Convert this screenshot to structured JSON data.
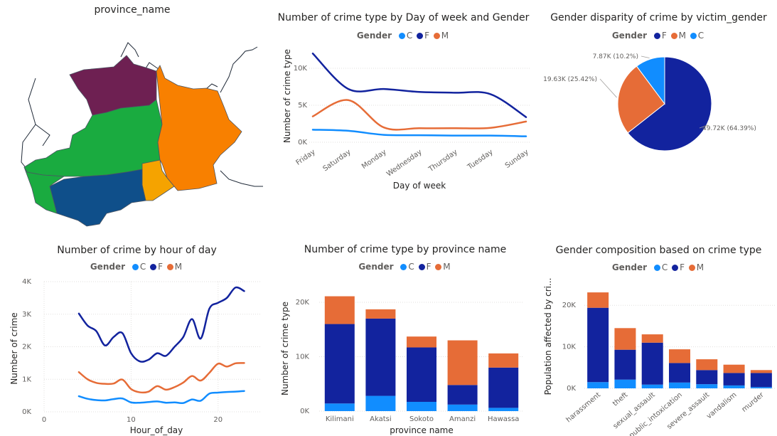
{
  "colors": {
    "C": "#118DFF",
    "F": "#12239E",
    "M": "#E66C37"
  },
  "map": {
    "title": "province_name",
    "regions": [
      {
        "name": "Kilimani",
        "color": "#12239E"
      },
      {
        "name": "Akatsi",
        "color": "#744EC2"
      },
      {
        "name": "Sokoto",
        "color": "#1AAB40"
      },
      {
        "name": "Amanzi",
        "color": "#F88000"
      },
      {
        "name": "Hawassa",
        "color": "#0F4F8A"
      }
    ]
  },
  "weekday": {
    "title": "Number of crime type by Day of week and Gender",
    "legend_title": "Gender",
    "legend": [
      {
        "key": "C",
        "label": "C"
      },
      {
        "key": "F",
        "label": "F"
      },
      {
        "key": "M",
        "label": "M"
      }
    ]
  },
  "pie": {
    "title": "Gender disparity of crime by victim_gender",
    "legend_title": "Gender",
    "legend": [
      {
        "key": "F",
        "label": "F"
      },
      {
        "key": "M",
        "label": "M"
      },
      {
        "key": "C",
        "label": "C"
      }
    ]
  },
  "hour": {
    "title": "Number of crime by hour of day",
    "legend_title": "Gender",
    "legend": [
      {
        "key": "C",
        "label": "C"
      },
      {
        "key": "F",
        "label": "F"
      },
      {
        "key": "M",
        "label": "M"
      }
    ]
  },
  "province": {
    "title": "Number of crime type by province name",
    "legend_title": "Gender",
    "legend": [
      {
        "key": "C",
        "label": "C"
      },
      {
        "key": "F",
        "label": "F"
      },
      {
        "key": "M",
        "label": "M"
      }
    ]
  },
  "crimetype": {
    "title": "Gender composition based on crime type",
    "legend_title": "Gender",
    "legend": [
      {
        "key": "C",
        "label": "C"
      },
      {
        "key": "F",
        "label": "F"
      },
      {
        "key": "M",
        "label": "M"
      }
    ]
  },
  "chart_data": [
    {
      "id": "weekday",
      "type": "line",
      "xlabel": "Day of week",
      "ylabel": "Number of crime type",
      "categories": [
        "Friday",
        "Saturday",
        "Monday",
        "Wednesday",
        "Thursday",
        "Tuesday",
        "Sunday"
      ],
      "yticks": [
        0,
        5000,
        10000
      ],
      "ytick_labels": [
        "0K",
        "5K",
        "10K"
      ],
      "ylim": [
        0,
        12500
      ],
      "series": [
        {
          "name": "C",
          "color": "#118DFF",
          "values": [
            1700,
            1550,
            1000,
            950,
            900,
            900,
            800
          ]
        },
        {
          "name": "F",
          "color": "#12239E",
          "values": [
            12000,
            7200,
            7200,
            6800,
            6700,
            6500,
            3400
          ]
        },
        {
          "name": "M",
          "color": "#E66C37",
          "values": [
            3500,
            5700,
            2000,
            1900,
            1900,
            1950,
            2800
          ]
        }
      ]
    },
    {
      "id": "pie",
      "type": "pie",
      "slices": [
        {
          "name": "F",
          "value": 49720,
          "label": "49.72K (64.39%)",
          "color": "#12239E"
        },
        {
          "name": "M",
          "value": 19630,
          "label": "19.63K (25.42%)",
          "color": "#E66C37"
        },
        {
          "name": "C",
          "value": 7870,
          "label": "7.87K (10.2%)",
          "color": "#118DFF"
        }
      ]
    },
    {
      "id": "hour",
      "type": "line",
      "xlabel": "Hour_of_day",
      "ylabel": "Number of crime",
      "x": [
        4,
        5,
        6,
        7,
        8,
        9,
        10,
        11,
        12,
        13,
        14,
        15,
        16,
        17,
        18,
        19,
        20,
        21,
        22,
        23
      ],
      "xticks": [
        0,
        10,
        20
      ],
      "xlim": [
        0,
        25
      ],
      "yticks": [
        0,
        1000,
        2000,
        3000,
        4000
      ],
      "ytick_labels": [
        "0K",
        "1K",
        "2K",
        "3K",
        "4K"
      ],
      "ylim": [
        0,
        4000
      ],
      "series": [
        {
          "name": "C",
          "color": "#118DFF",
          "values": [
            480,
            400,
            360,
            350,
            390,
            410,
            290,
            280,
            300,
            320,
            280,
            290,
            270,
            380,
            340,
            560,
            590,
            610,
            620,
            640
          ]
        },
        {
          "name": "F",
          "color": "#12239E",
          "values": [
            3020,
            2650,
            2480,
            2040,
            2300,
            2420,
            1800,
            1550,
            1600,
            1800,
            1720,
            2000,
            2300,
            2850,
            2250,
            3170,
            3350,
            3500,
            3820,
            3710
          ]
        },
        {
          "name": "M",
          "color": "#E66C37",
          "values": [
            1220,
            1000,
            890,
            860,
            870,
            990,
            700,
            600,
            620,
            790,
            680,
            760,
            900,
            1100,
            960,
            1200,
            1480,
            1390,
            1490,
            1500
          ]
        }
      ]
    },
    {
      "id": "province",
      "type": "bar",
      "stacked": true,
      "xlabel": "province name",
      "ylabel": "Number of crime type",
      "categories": [
        "Kilimani",
        "Akatsi",
        "Sokoto",
        "Amanzi",
        "Hawassa"
      ],
      "yticks": [
        0,
        10000,
        20000
      ],
      "ytick_labels": [
        "0K",
        "10K",
        "20K"
      ],
      "ylim": [
        0,
        23000
      ],
      "series": [
        {
          "name": "C",
          "color": "#118DFF",
          "values": [
            1400,
            2800,
            1700,
            1200,
            600
          ]
        },
        {
          "name": "F",
          "color": "#12239E",
          "values": [
            14600,
            14200,
            10000,
            3600,
            7400
          ]
        },
        {
          "name": "M",
          "color": "#E66C37",
          "values": [
            5100,
            1700,
            2000,
            8200,
            2600
          ]
        }
      ]
    },
    {
      "id": "crimetype",
      "type": "bar",
      "stacked": true,
      "xlabel": "",
      "ylabel": "Population affected by cri...",
      "categories": [
        "harassment",
        "theft",
        "sexual_assault",
        "public_intoxication",
        "severe_assault",
        "vandalism",
        "murder"
      ],
      "yticks": [
        0,
        10000,
        20000
      ],
      "ytick_labels": [
        "0K",
        "10K",
        "20K"
      ],
      "ylim": [
        0,
        25000
      ],
      "series": [
        {
          "name": "C",
          "color": "#118DFF",
          "values": [
            1500,
            2100,
            900,
            1400,
            1000,
            700,
            300
          ]
        },
        {
          "name": "F",
          "color": "#12239E",
          "values": [
            17900,
            7200,
            10100,
            4700,
            3400,
            3000,
            3400
          ]
        },
        {
          "name": "M",
          "color": "#E66C37",
          "values": [
            3700,
            5200,
            2000,
            3300,
            2600,
            2000,
            700
          ]
        }
      ]
    }
  ]
}
